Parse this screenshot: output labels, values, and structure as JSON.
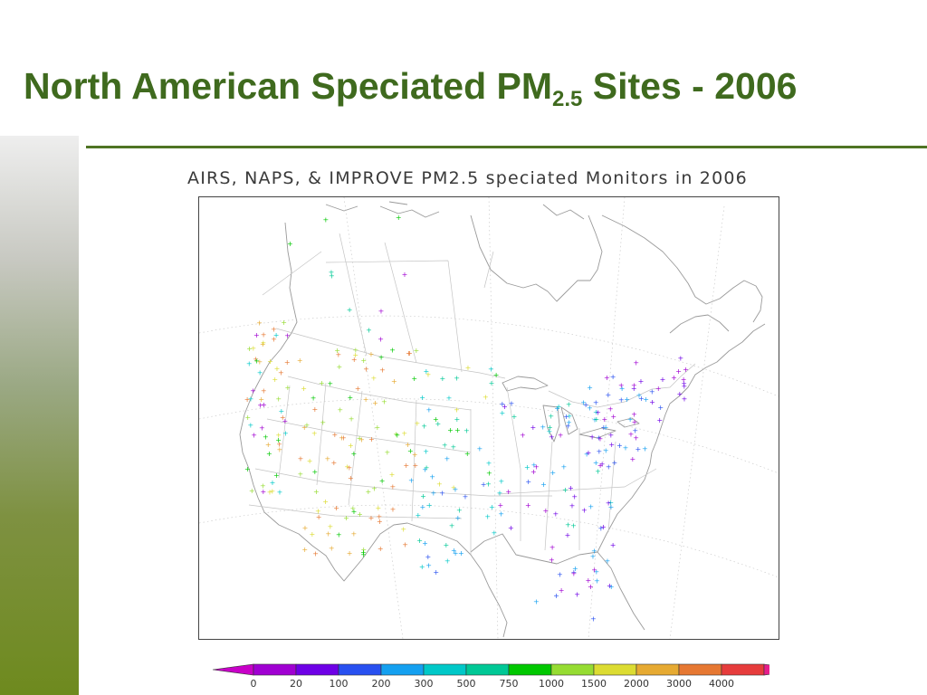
{
  "slide": {
    "title_main": "North American Speciated PM",
    "title_sub": "2.5",
    "title_tail": " Sites - 2006"
  },
  "map": {
    "title": "AIRS, NAPS, & IMPROVE PM2.5 speciated Monitors in 2006",
    "region": "North America (Canada, United States, northern Mexico)",
    "marker_symbol": "+",
    "colorbar": {
      "levels": [
        {
          "label": "0",
          "color": "#a000d2"
        },
        {
          "label": "20",
          "color": "#6e00e6"
        },
        {
          "label": "100",
          "color": "#2850f0"
        },
        {
          "label": "200",
          "color": "#14a0f0"
        },
        {
          "label": "300",
          "color": "#00c8c8"
        },
        {
          "label": "500",
          "color": "#00c896"
        },
        {
          "label": "750",
          "color": "#00c800"
        },
        {
          "label": "1000",
          "color": "#96dc32"
        },
        {
          "label": "1500",
          "color": "#dcdc32"
        },
        {
          "label": "2000",
          "color": "#e6aa32"
        },
        {
          "label": "3000",
          "color": "#e67832"
        },
        {
          "label": "4000",
          "color": "#e63c3c"
        }
      ],
      "under_color": "#c800c8",
      "over_color": "#e61e8c"
    }
  }
}
